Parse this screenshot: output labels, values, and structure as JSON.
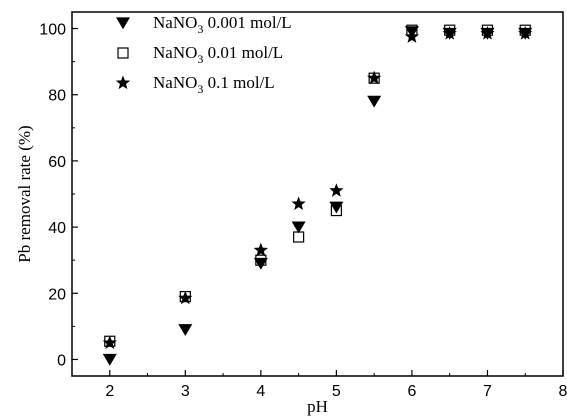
{
  "chart_data": {
    "type": "scatter",
    "xlabel": "pH",
    "ylabel": "Pb removal rate (%)",
    "xlim": [
      1.5,
      8
    ],
    "ylim": [
      -5,
      105
    ],
    "xticks": [
      "2",
      "3",
      "4",
      "5",
      "6",
      "7",
      "8"
    ],
    "yticks": [
      "0",
      "20",
      "40",
      "60",
      "80",
      "100"
    ],
    "legend_position": "top-left",
    "grid": false,
    "series": [
      {
        "name": "NaNO3 0.001 mol/L",
        "label_main": "NaNO",
        "label_sub": "3",
        "label_rest": " 0.001 mol/L",
        "marker": "triangle-down",
        "x": [
          2,
          3,
          4,
          4.5,
          5,
          5.5,
          6,
          6.5,
          7,
          7.5
        ],
        "y": [
          0,
          9,
          29,
          40,
          46,
          78,
          99,
          98.5,
          98.5,
          98.5
        ]
      },
      {
        "name": "NaNO3 0.01 mol/L",
        "label_main": "NaNO",
        "label_sub": "3",
        "label_rest": " 0.01 mol/L",
        "marker": "square-open",
        "x": [
          2,
          3,
          4,
          4.5,
          5,
          5.5,
          6,
          6.5,
          7,
          7.5
        ],
        "y": [
          5.5,
          19,
          30,
          37,
          45,
          85,
          99.5,
          99.5,
          99.5,
          99.5
        ]
      },
      {
        "name": "NaNO3 0.1 mol/L",
        "label_main": "NaNO",
        "label_sub": "3",
        "label_rest": " 0.1 mol/L",
        "marker": "star",
        "x": [
          2,
          3,
          4,
          4.5,
          5,
          5.5,
          6,
          6.5,
          7,
          7.5
        ],
        "y": [
          5,
          18.5,
          33,
          47,
          51,
          85,
          97.5,
          98.5,
          98.5,
          98.5
        ]
      }
    ]
  }
}
